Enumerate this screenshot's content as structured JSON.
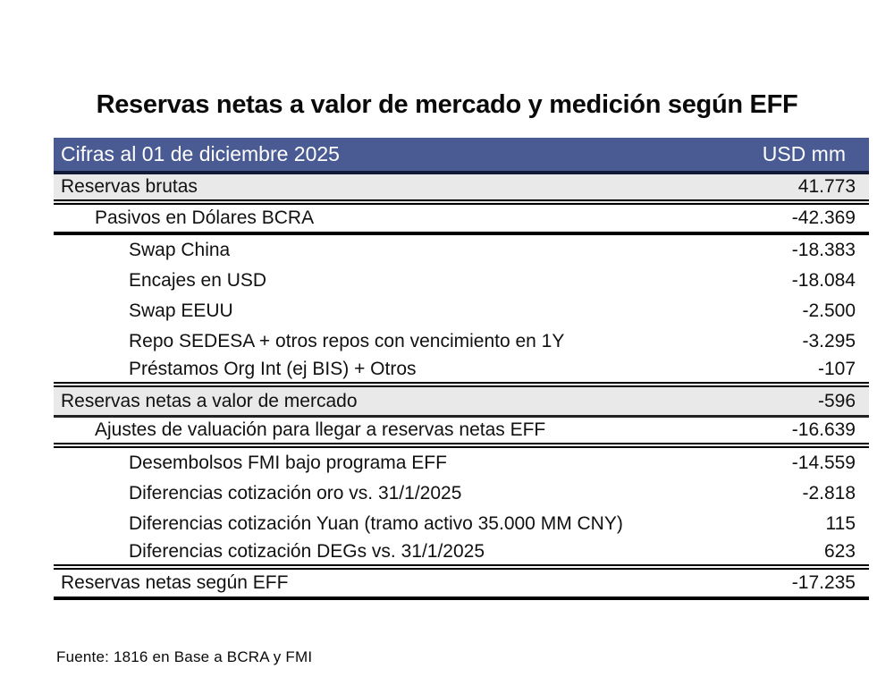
{
  "title": "Reservas netas a valor de mercado y medición según EFF",
  "table": {
    "header": {
      "label": "Cifras al 01 de diciembre 2025",
      "unit": "USD mm"
    },
    "rows": [
      {
        "label": "Reservas brutas",
        "value": "41.773",
        "indent": 0,
        "shaded": true,
        "separator": "double"
      },
      {
        "label": "Pasivos en Dólares BCRA",
        "value": "-42.369",
        "indent": 1,
        "shaded": false,
        "separator": "thick"
      },
      {
        "label": "Swap China",
        "value": "-18.383",
        "indent": 2,
        "shaded": false,
        "separator": "none"
      },
      {
        "label": "Encajes en USD",
        "value": "-18.084",
        "indent": 2,
        "shaded": false,
        "separator": "none"
      },
      {
        "label": "Swap EEUU",
        "value": "-2.500",
        "indent": 2,
        "shaded": false,
        "separator": "none"
      },
      {
        "label": "Repo SEDESA + otros repos con vencimiento en 1Y",
        "value": "-3.295",
        "indent": 2,
        "shaded": false,
        "separator": "none"
      },
      {
        "label": "Préstamos Org Int (ej BIS) + Otros",
        "value": "-107",
        "indent": 2,
        "shaded": false,
        "separator": "double"
      },
      {
        "label": "Reservas netas a valor de mercado",
        "value": "-596",
        "indent": 0,
        "shaded": true,
        "separator": "thin"
      },
      {
        "label": "Ajustes de valuación para llegar a reservas netas EFF",
        "value": "-16.639",
        "indent": 1,
        "shaded": false,
        "separator": "double"
      },
      {
        "label": "Desembolsos FMI bajo programa EFF",
        "value": "-14.559",
        "indent": 2,
        "shaded": false,
        "separator": "none"
      },
      {
        "label": "Diferencias cotización oro vs. 31/1/2025",
        "value": "-2.818",
        "indent": 2,
        "shaded": false,
        "separator": "none"
      },
      {
        "label": "Diferencias cotización Yuan  (tramo activo 35.000 MM CNY)",
        "value": "115",
        "indent": 2,
        "shaded": false,
        "separator": "none"
      },
      {
        "label": "Diferencias cotización DEGs vs. 31/1/2025",
        "value": "623",
        "indent": 2,
        "shaded": false,
        "separator": "double"
      },
      {
        "label": "Reservas netas según EFF",
        "value": "-17.235",
        "indent": 0,
        "shaded": false,
        "separator": "thick"
      }
    ]
  },
  "footer": {
    "source": "Fuente: 1816 en Base a BCRA y FMI"
  },
  "colors": {
    "header_bg": "#4a5b94",
    "header_text": "#ffffff",
    "header_rule": "#131a38",
    "shaded_row_bg": "#e9e9e9",
    "rule": "#000000",
    "text": "#111111",
    "page_bg": "#ffffff"
  }
}
